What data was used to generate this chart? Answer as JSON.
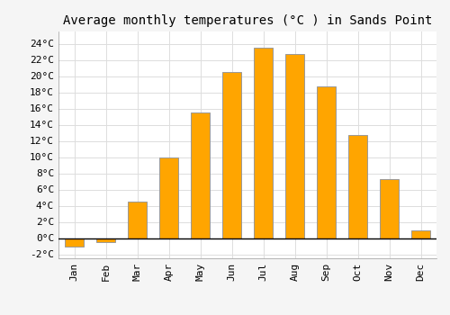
{
  "title": "Average monthly temperatures (°C ) in Sands Point",
  "months": [
    "Jan",
    "Feb",
    "Mar",
    "Apr",
    "May",
    "Jun",
    "Jul",
    "Aug",
    "Sep",
    "Oct",
    "Nov",
    "Dec"
  ],
  "temperatures": [
    -1.0,
    -0.5,
    4.5,
    10.0,
    15.5,
    20.5,
    23.5,
    22.7,
    18.7,
    12.7,
    7.3,
    1.0
  ],
  "bar_color_positive": "#FFA500",
  "bar_color_negative": "#FFA500",
  "bar_edge_color": "#999999",
  "ylim": [
    -2.5,
    25.5
  ],
  "yticks": [
    -2,
    0,
    2,
    4,
    6,
    8,
    10,
    12,
    14,
    16,
    18,
    20,
    22,
    24
  ],
  "background_color": "#F5F5F5",
  "plot_bg_color": "#FFFFFF",
  "grid_color": "#DDDDDD",
  "title_fontsize": 10,
  "tick_fontsize": 8,
  "font_family": "monospace"
}
